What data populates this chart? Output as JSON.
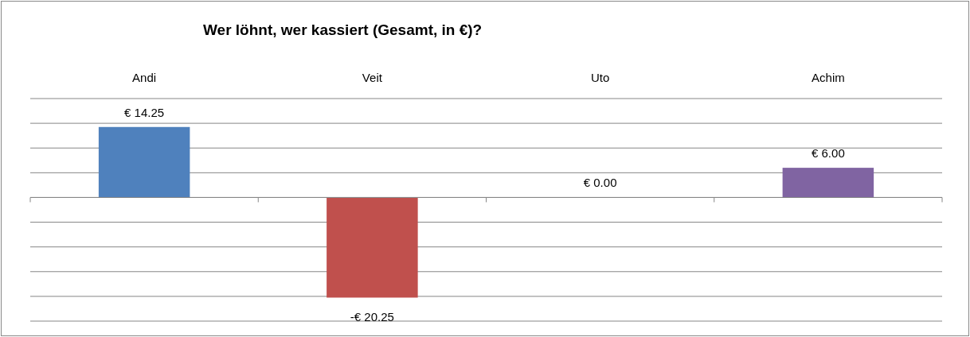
{
  "chart_data": {
    "type": "bar",
    "title": "Wer löhnt, wer kassiert (Gesamt, in €)?",
    "categories": [
      "Andi",
      "Veit",
      "Uto",
      "Achim"
    ],
    "values": [
      14.25,
      -20.25,
      0,
      6
    ],
    "colors": [
      "#4f81bd",
      "#c0504d",
      "#9bbb59",
      "#8064a2"
    ],
    "value_labels": [
      "€ 14.25",
      "-€ 20.25",
      "€ 0.00",
      "€ 6.00"
    ],
    "ylim": [
      -25,
      20
    ],
    "yticks": [
      {
        "value": -25,
        "label": null
      },
      {
        "value": -20,
        "label": null
      },
      {
        "value": -15,
        "label": null
      },
      {
        "value": -10,
        "label": null
      },
      {
        "value": -5,
        "label": null
      },
      {
        "value": 0,
        "label": null
      },
      {
        "value": 5,
        "label": null
      },
      {
        "value": 10,
        "label": null
      },
      {
        "value": 15,
        "label": null
      },
      {
        "value": 20,
        "label": null
      }
    ],
    "grid": "y",
    "tick_labels": "x"
  }
}
